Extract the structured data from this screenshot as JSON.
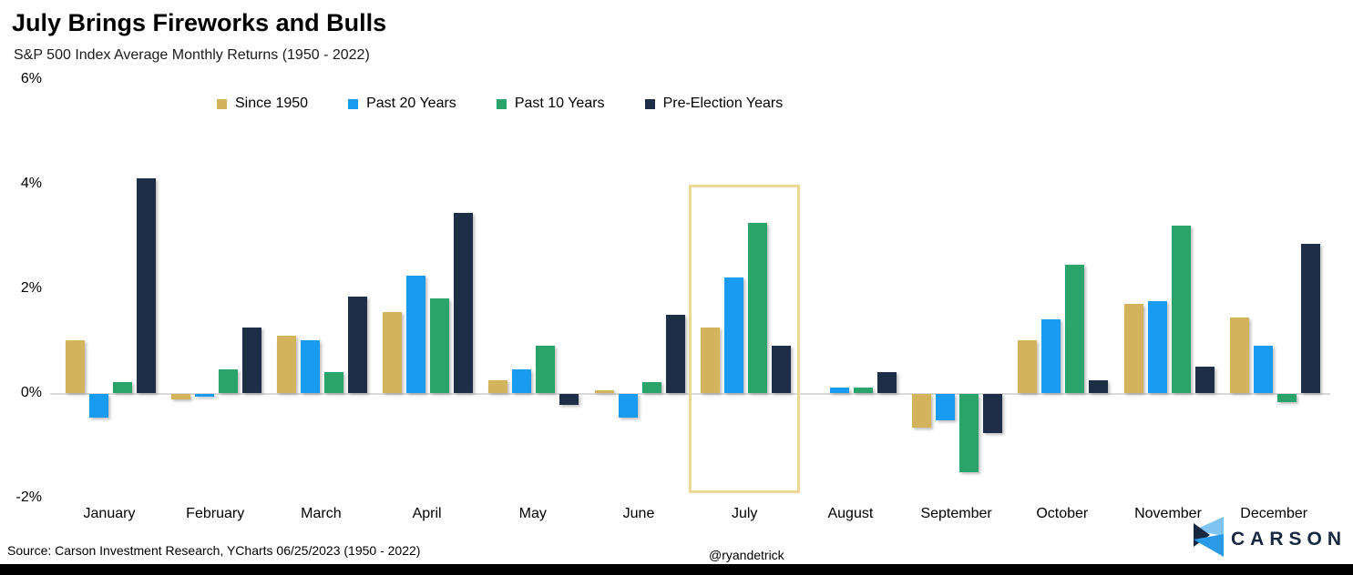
{
  "header": {
    "title": "July Brings Fireworks and Bulls",
    "subtitle": "S&P 500 Index Average Monthly Returns (1950 - 2022)"
  },
  "footer": {
    "source": "Source: Carson Investment Research, YCharts 06/25/2023 (1950 - 2022)",
    "handle": "@ryandetrick",
    "logo_text": "CARSON"
  },
  "chart_data": {
    "type": "bar",
    "title": "July Brings Fireworks and Bulls",
    "subtitle": "S&P 500 Index Average Monthly Returns (1950 - 2022)",
    "categories": [
      "January",
      "February",
      "March",
      "April",
      "May",
      "June",
      "July",
      "August",
      "September",
      "October",
      "November",
      "December"
    ],
    "series": [
      {
        "name": "Since 1950",
        "color": "#d3b35b",
        "values": [
          1.0,
          -0.1,
          1.1,
          1.55,
          0.25,
          0.05,
          1.25,
          0.0,
          -0.65,
          1.0,
          1.7,
          1.45
        ]
      },
      {
        "name": "Past 20 Years",
        "color": "#189bf0",
        "values": [
          -0.45,
          -0.05,
          1.0,
          2.25,
          0.45,
          -0.45,
          2.2,
          0.1,
          -0.5,
          1.4,
          1.75,
          0.9
        ]
      },
      {
        "name": "Past 10 Years",
        "color": "#2ba46c",
        "values": [
          0.2,
          0.45,
          0.4,
          1.8,
          0.9,
          0.2,
          3.25,
          0.1,
          -1.5,
          2.45,
          3.2,
          -0.15
        ]
      },
      {
        "name": "Pre-Election Years",
        "color": "#1f2e47",
        "values": [
          4.1,
          1.25,
          1.85,
          3.45,
          -0.2,
          1.5,
          0.9,
          0.4,
          -0.75,
          0.25,
          0.5,
          2.85
        ]
      }
    ],
    "xlabel": "",
    "ylabel": "",
    "y_ticks": [
      {
        "label": "6%",
        "value": 6
      },
      {
        "label": "4%",
        "value": 4
      },
      {
        "label": "2%",
        "value": 2
      },
      {
        "label": "0%",
        "value": 0
      },
      {
        "label": "-2%",
        "value": -2
      }
    ],
    "ylim": [
      -2.4,
      6.1
    ],
    "grid": "zero-line-only",
    "legend_position": "top",
    "highlight": {
      "category": "July",
      "border_color": "#ecd794"
    }
  }
}
